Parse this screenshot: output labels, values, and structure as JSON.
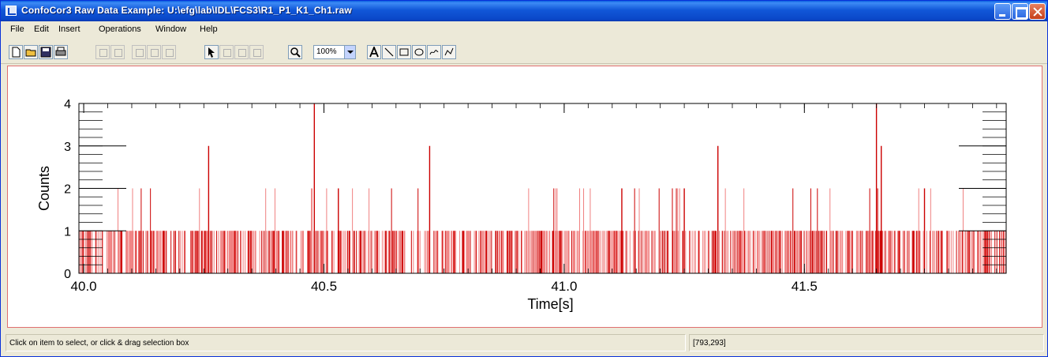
{
  "window": {
    "title": "ConfoCor3 Raw Data Example: U:\\efg\\lab\\IDL\\FCS3\\R1_P1_K1_Ch1.raw"
  },
  "menu": {
    "items": [
      "File",
      "Edit",
      "Insert",
      "Operations",
      "Window",
      "Help"
    ]
  },
  "toolbar": {
    "zoom_value": "100%",
    "tools": [
      "new-file-icon",
      "open-folder-icon",
      "save-icon",
      "print-icon",
      "undo-icon",
      "redo-icon",
      "cut-icon",
      "copy-icon",
      "paste-icon",
      "select-arrow-icon",
      "rotate-icon",
      "pan-icon",
      "select-box-icon",
      "zoom-icon",
      "text-icon",
      "line-icon",
      "rectangle-icon",
      "ellipse-icon",
      "freehand-icon",
      "polyline-icon"
    ]
  },
  "status": {
    "message": "Click on item to select, or click & drag selection box",
    "coordinates": "[793,293]"
  },
  "colors": {
    "trace_dark": "#cc0000",
    "trace_light": "#f08080",
    "axis": "#000000"
  },
  "chart_data": {
    "type": "bar",
    "xlabel": "Time[s]",
    "ylabel": "Counts",
    "xlim": [
      39.99,
      41.92
    ],
    "ylim": [
      0,
      4
    ],
    "xticks": [
      "40.0",
      "40.5",
      "41.0",
      "41.5"
    ],
    "yticks": [
      "0",
      "1",
      "2",
      "3",
      "4"
    ],
    "grid": false,
    "series": [
      {
        "values_description_free": true,
        "x": [
          40.26,
          40.48,
          40.72,
          41.32,
          41.65,
          41.66,
          41.12,
          40.53,
          41.25,
          41.75
        ],
        "values": [
          3,
          4,
          3,
          3,
          4,
          3,
          2,
          2,
          2,
          2
        ]
      }
    ]
  }
}
